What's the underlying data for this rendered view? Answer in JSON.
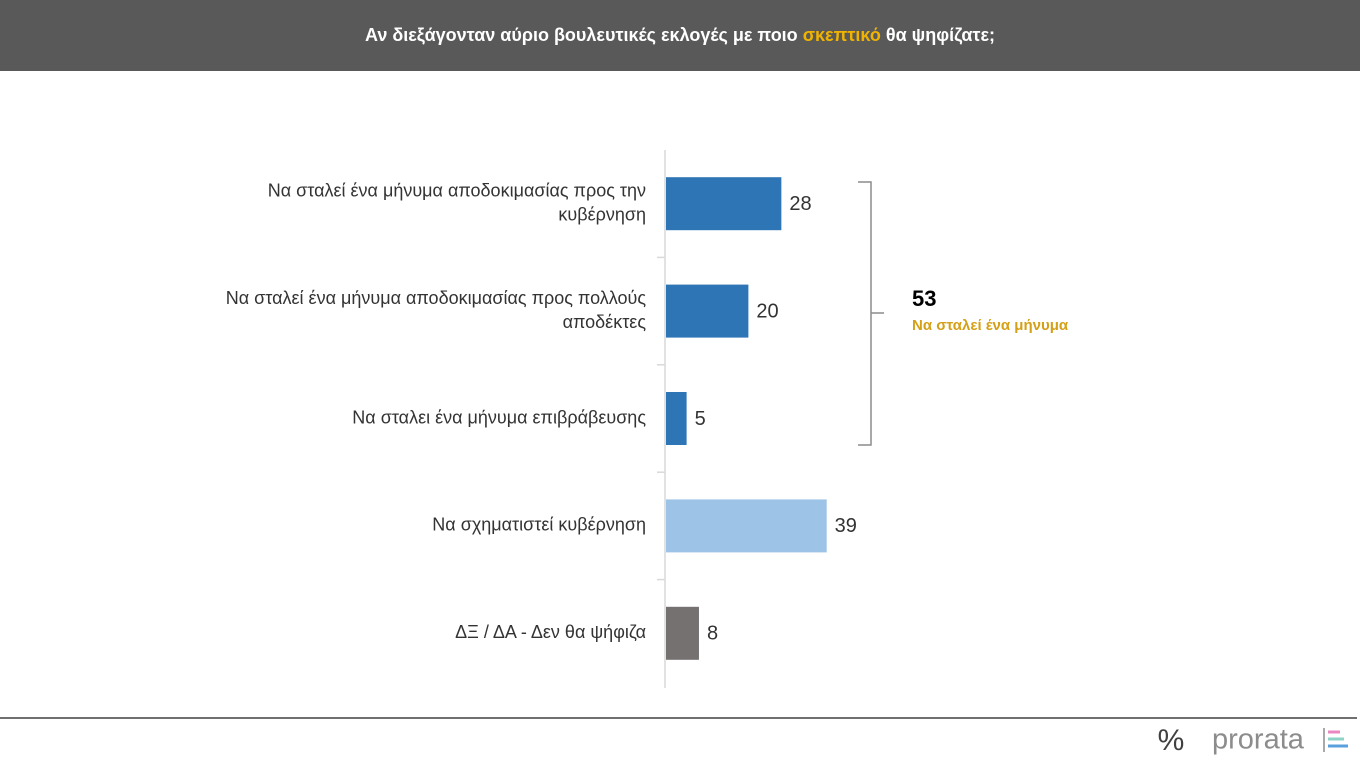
{
  "chart_data": {
    "type": "bar",
    "title": [
      "Αν διεξάγονταν αύριο βουλευτικές εκλογές με ποιο ",
      "σκεπτικό",
      " θα ψηφίζατε;"
    ],
    "categories": [
      [
        "Να σταλεί ένα μήνυμα αποδοκιμασίας προς την",
        "κυβέρνηση"
      ],
      [
        "Να σταλεί ένα μήνυμα αποδοκιμασίας προς πολλούς",
        "αποδέκτες"
      ],
      [
        "Να σταλει ένα μήνυμα επιβράβευσης"
      ],
      [
        "Να σχηματιστεί κυβέρνηση"
      ],
      [
        "ΔΞ / ΔΑ - Δεν θα ψήφιζα"
      ]
    ],
    "values": [
      28,
      20,
      5,
      39,
      8
    ],
    "colors": [
      "#2e75b6",
      "#2e75b6",
      "#2e75b6",
      "#9dc3e6",
      "#767171"
    ],
    "annotation": {
      "value": 53,
      "label": "Να σταλεί ένα μήνυμα"
    }
  },
  "footer": {
    "logo_mark": "%",
    "logo": "prorata"
  }
}
